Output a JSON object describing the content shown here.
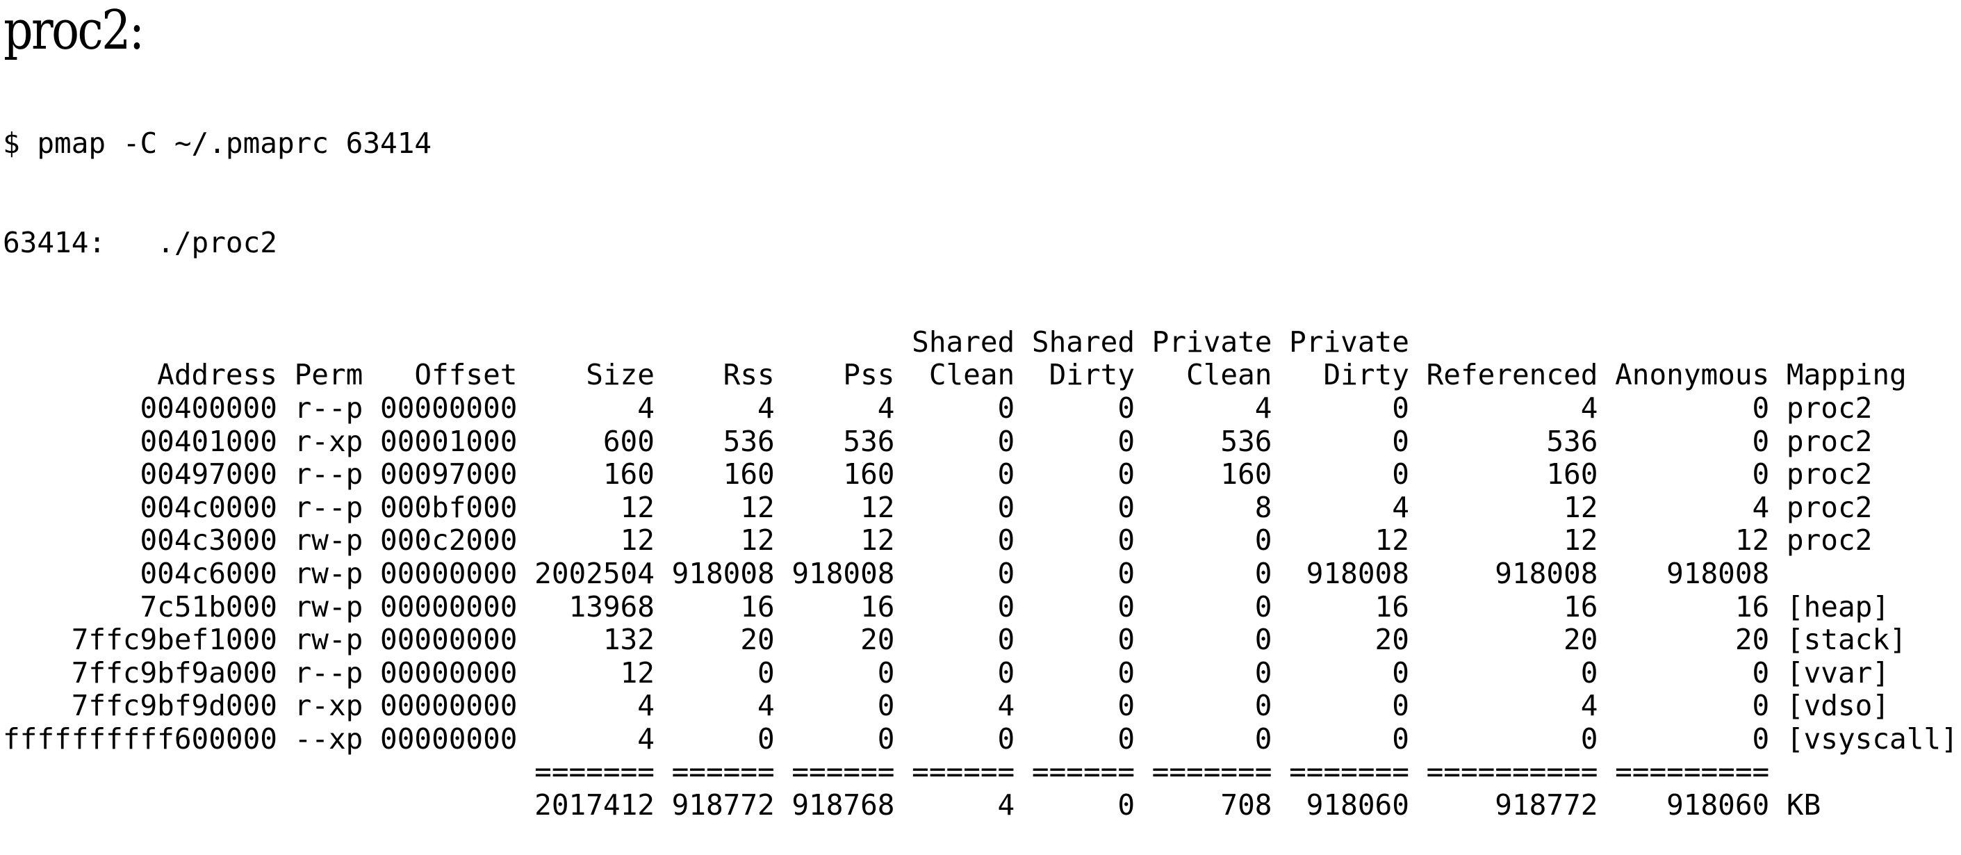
{
  "title": "proc2:",
  "command": "$ pmap -C ~/.pmaprc 63414",
  "process_line": "63414:   ./proc2",
  "table": {
    "header_top": [
      "",
      "",
      "",
      "",
      "",
      "",
      "Shared",
      "Shared",
      "Private",
      "Private",
      "",
      "",
      ""
    ],
    "header": [
      "Address",
      "Perm",
      "Offset",
      "Size",
      "Rss",
      "Pss",
      "Clean",
      "Dirty",
      "Clean",
      "Dirty",
      "Referenced",
      "Anonymous",
      "Mapping"
    ],
    "rows": [
      [
        "00400000",
        "r--p",
        "00000000",
        "4",
        "4",
        "4",
        "0",
        "0",
        "4",
        "0",
        "4",
        "0",
        "proc2"
      ],
      [
        "00401000",
        "r-xp",
        "00001000",
        "600",
        "536",
        "536",
        "0",
        "0",
        "536",
        "0",
        "536",
        "0",
        "proc2"
      ],
      [
        "00497000",
        "r--p",
        "00097000",
        "160",
        "160",
        "160",
        "0",
        "0",
        "160",
        "0",
        "160",
        "0",
        "proc2"
      ],
      [
        "004c0000",
        "r--p",
        "000bf000",
        "12",
        "12",
        "12",
        "0",
        "0",
        "8",
        "4",
        "12",
        "4",
        "proc2"
      ],
      [
        "004c3000",
        "rw-p",
        "000c2000",
        "12",
        "12",
        "12",
        "0",
        "0",
        "0",
        "12",
        "12",
        "12",
        "proc2"
      ],
      [
        "004c6000",
        "rw-p",
        "00000000",
        "2002504",
        "918008",
        "918008",
        "0",
        "0",
        "0",
        "918008",
        "918008",
        "918008",
        ""
      ],
      [
        "7c51b000",
        "rw-p",
        "00000000",
        "13968",
        "16",
        "16",
        "0",
        "0",
        "0",
        "16",
        "16",
        "16",
        "[heap]"
      ],
      [
        "7ffc9bef1000",
        "rw-p",
        "00000000",
        "132",
        "20",
        "20",
        "0",
        "0",
        "0",
        "20",
        "20",
        "20",
        "[stack]"
      ],
      [
        "7ffc9bf9a000",
        "r--p",
        "00000000",
        "12",
        "0",
        "0",
        "0",
        "0",
        "0",
        "0",
        "0",
        "0",
        "[vvar]"
      ],
      [
        "7ffc9bf9d000",
        "r-xp",
        "00000000",
        "4",
        "4",
        "0",
        "4",
        "0",
        "0",
        "0",
        "4",
        "0",
        "[vdso]"
      ],
      [
        "ffffffffff600000",
        "--xp",
        "00000000",
        "4",
        "0",
        "0",
        "0",
        "0",
        "0",
        "0",
        "0",
        "0",
        "[vsyscall]"
      ]
    ],
    "separator": [
      "",
      "",
      "",
      "=======",
      "======",
      "======",
      "======",
      "======",
      "=======",
      "=======",
      "==========",
      "=========",
      ""
    ],
    "totals": [
      "",
      "",
      "",
      "2017412",
      "918772",
      "918768",
      "4",
      "0",
      "708",
      "918060",
      "918772",
      "918060",
      "KB"
    ]
  }
}
